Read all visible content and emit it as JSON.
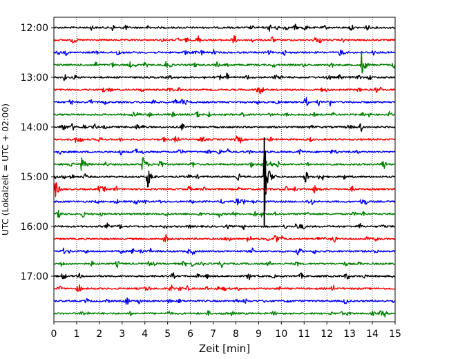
{
  "chart_data": {
    "type": "line",
    "xlabel": "Zeit  [min]",
    "ylabel": "UTC (Lokalzeit = UTC + 02:00)",
    "xlim": [
      0,
      15
    ],
    "x_ticks": [
      "0",
      "1",
      "2",
      "3",
      "4",
      "5",
      "6",
      "7",
      "8",
      "9",
      "10",
      "11",
      "12",
      "13",
      "14",
      "15"
    ],
    "y_tick_labels": [
      "12:00",
      "13:00",
      "14:00",
      "15:00",
      "16:00",
      "17:00"
    ],
    "grid": "vertical dotted at each minute",
    "trace_colors": [
      "#000000",
      "#ff0000",
      "#0000ff",
      "#008000"
    ],
    "trace_start_times": [
      "12:00",
      "12:15",
      "12:30",
      "12:45",
      "13:00",
      "13:15",
      "13:30",
      "13:45",
      "14:00",
      "14:15",
      "14:30",
      "14:45",
      "15:00",
      "15:15",
      "15:30",
      "15:45",
      "16:00",
      "16:15",
      "16:30",
      "16:45",
      "17:00",
      "17:15",
      "17:30",
      "17:45"
    ],
    "notable_events": [
      {
        "trace_start": "12:45",
        "minute": 13.5,
        "amplitude": "medium"
      },
      {
        "trace_start": "14:45",
        "minute": 1.2,
        "amplitude": "small"
      },
      {
        "trace_start": "14:45",
        "minute": 3.9,
        "amplitude": "small"
      },
      {
        "trace_start": "15:00",
        "minute": 4.1,
        "amplitude": "medium"
      },
      {
        "trace_start": "15:00",
        "minute": 9.25,
        "amplitude": "large"
      },
      {
        "trace_start": "15:15",
        "minute": 0.05,
        "amplitude": "small"
      },
      {
        "trace_start": "16:15",
        "minute": 9.7,
        "amplitude": "small"
      }
    ]
  }
}
